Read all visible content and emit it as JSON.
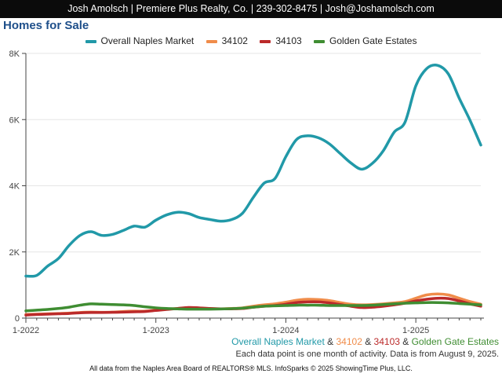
{
  "header": {
    "banner": "Josh Amolsch | Premiere Plus Realty, Co. | 239-302-8475 | Josh@Joshamolsch.com"
  },
  "caption": {
    "part1": "Overall Naples Market",
    "amp1": " & ",
    "part2": "34102",
    "amp2": " & ",
    "part3": "34103",
    "amp3": " & ",
    "part4": "Golden Gate Estates",
    "note": "Each data point is one month of activity. Data is from August 9, 2025."
  },
  "footer": {
    "text": "All data from the Naples Area Board of REALTORS® MLS. InfoSparks © 2025 ShowingTime Plus, LLC."
  },
  "colors": {
    "axis": "#444444",
    "grid": "#e6e6e6"
  },
  "chart_data": {
    "type": "line",
    "title": "Homes for Sale",
    "x": [
      "1-2022",
      "2-2022",
      "3-2022",
      "4-2022",
      "5-2022",
      "6-2022",
      "7-2022",
      "8-2022",
      "9-2022",
      "10-2022",
      "11-2022",
      "12-2022",
      "1-2023",
      "2-2023",
      "3-2023",
      "4-2023",
      "5-2023",
      "6-2023",
      "7-2023",
      "8-2023",
      "9-2023",
      "10-2023",
      "11-2023",
      "12-2023",
      "1-2024",
      "2-2024",
      "3-2024",
      "4-2024",
      "5-2024",
      "6-2024",
      "7-2024",
      "8-2024",
      "9-2024",
      "10-2024",
      "11-2024",
      "12-2024",
      "1-2025",
      "2-2025",
      "3-2025",
      "4-2025",
      "5-2025",
      "6-2025",
      "7-2025"
    ],
    "xticks": [
      "1-2022",
      "1-2023",
      "1-2024",
      "1-2025"
    ],
    "yticks": [
      0,
      2000,
      4000,
      6000,
      8000
    ],
    "ytick_labels": [
      "0",
      "2K",
      "4K",
      "6K",
      "8K"
    ],
    "ylim": [
      0,
      8000
    ],
    "series": [
      {
        "name": "Overall Naples Market",
        "color": "#2199a8",
        "values": [
          1270,
          1290,
          1570,
          1800,
          2200,
          2500,
          2610,
          2500,
          2530,
          2650,
          2780,
          2750,
          2960,
          3120,
          3200,
          3160,
          3040,
          2980,
          2930,
          2980,
          3170,
          3650,
          4080,
          4220,
          4880,
          5400,
          5510,
          5450,
          5270,
          4980,
          4690,
          4500,
          4680,
          5060,
          5620,
          5920,
          7020,
          7540,
          7640,
          7380,
          6650,
          5980,
          5230
        ]
      },
      {
        "name": "34102",
        "color": "#f08c4a",
        "values": [
          110,
          120,
          130,
          140,
          150,
          170,
          180,
          175,
          180,
          200,
          210,
          210,
          240,
          270,
          290,
          300,
          290,
          285,
          280,
          290,
          310,
          360,
          400,
          430,
          480,
          540,
          570,
          560,
          530,
          470,
          420,
          400,
          410,
          430,
          460,
          500,
          600,
          700,
          730,
          700,
          600,
          500,
          420
        ]
      },
      {
        "name": "34103",
        "color": "#bb2a2a",
        "values": [
          90,
          110,
          120,
          130,
          140,
          160,
          170,
          170,
          175,
          180,
          190,
          200,
          230,
          260,
          290,
          320,
          310,
          290,
          280,
          280,
          290,
          330,
          360,
          380,
          420,
          470,
          490,
          490,
          460,
          410,
          360,
          320,
          330,
          360,
          400,
          450,
          520,
          570,
          600,
          590,
          520,
          430,
          360
        ]
      },
      {
        "name": "Golden Gate Estates",
        "color": "#3f8d32",
        "values": [
          220,
          240,
          260,
          290,
          330,
          390,
          430,
          420,
          410,
          400,
          380,
          340,
          310,
          290,
          280,
          270,
          270,
          270,
          275,
          285,
          300,
          330,
          360,
          370,
          380,
          390,
          390,
          390,
          380,
          380,
          380,
          380,
          390,
          410,
          430,
          450,
          460,
          470,
          470,
          460,
          440,
          420,
          400
        ]
      }
    ]
  }
}
